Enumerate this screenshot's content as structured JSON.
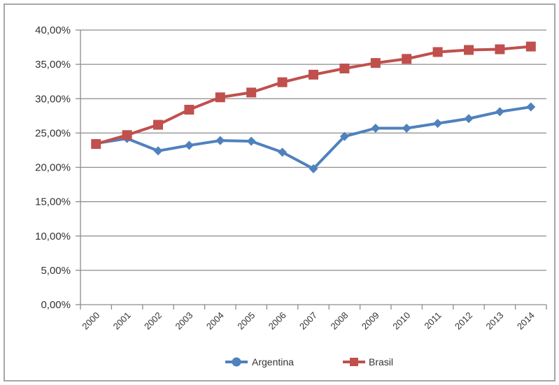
{
  "chart_data": {
    "type": "line",
    "title": "",
    "xlabel": "",
    "ylabel": "",
    "x": [
      "2000",
      "2001",
      "2002",
      "2003",
      "2004",
      "2005",
      "2006",
      "2007",
      "2008",
      "2009",
      "2010",
      "2011",
      "2012",
      "2013",
      "2014"
    ],
    "y_ticks": [
      "0,00%",
      "5,00%",
      "10,00%",
      "15,00%",
      "20,00%",
      "25,00%",
      "30,00%",
      "35,00%",
      "40,00%"
    ],
    "ylim": [
      0,
      40
    ],
    "grid": true,
    "legend_position": "bottom",
    "series": [
      {
        "name": "Argentina",
        "marker": "diamond",
        "color": "#4f81bd",
        "values": [
          23.5,
          24.2,
          22.4,
          23.2,
          23.9,
          23.8,
          22.2,
          19.8,
          24.5,
          25.7,
          25.7,
          26.4,
          27.1,
          28.1,
          28.8
        ]
      },
      {
        "name": "Brasil",
        "marker": "square",
        "color": "#c0504d",
        "values": [
          23.4,
          24.7,
          26.2,
          28.4,
          30.2,
          30.9,
          32.4,
          33.5,
          34.4,
          35.2,
          35.8,
          36.8,
          37.1,
          37.2,
          37.6
        ]
      }
    ]
  }
}
